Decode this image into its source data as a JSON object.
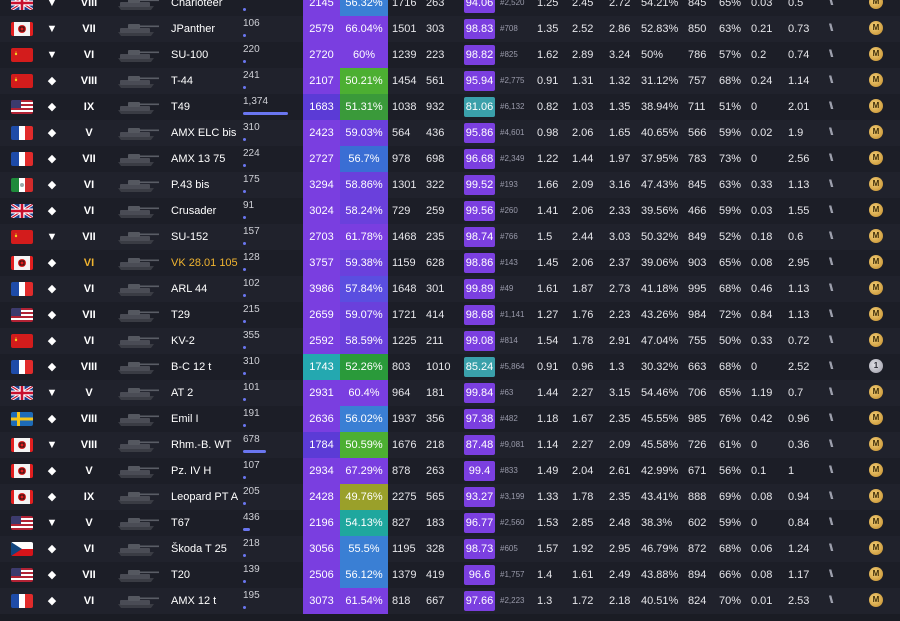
{
  "colors": {
    "tier_default": "#ffffff",
    "tier_premium": "#f0b430",
    "battles_bar": "#6a76f0",
    "wn8_purple": "#7a3ee0",
    "wn8_violet": "#5b3bd6",
    "wn8_teal": "#24a8b0",
    "wr_green": "#4caf32",
    "wr_teal": "#1fa79e",
    "pb_purple": "#7b3fe0",
    "pb_teal": "#3aa0aa"
  },
  "columns": [
    "nation",
    "type",
    "tier",
    "tank",
    "name",
    "battles",
    "wn8",
    "winrate",
    "damage",
    "frags",
    "percentile",
    "rank",
    "k1",
    "k2",
    "k3",
    "survived",
    "xp",
    "hit",
    "k4",
    "k5",
    "marks",
    "mastery"
  ],
  "rows": [
    {
      "nation": "uk",
      "type": "td",
      "tier": "VIII",
      "name": "Charioteer",
      "battles": "190",
      "bbar": 0.03,
      "wn8": "2145",
      "wn8c": "#7a3ee0",
      "wr": "56.32%",
      "wrc": "#3a7fd4",
      "dmg": "1716",
      "frags": "263",
      "pb": "94.06",
      "pbc": "#7b3fe0",
      "rank": "#2,520",
      "k1": "1.25",
      "k2": "2.45",
      "k3": "2.72",
      "surv": "54.21%",
      "xp": "845",
      "hit": "65%",
      "k4": "0.03",
      "k5": "0.5",
      "mast": "M",
      "mastc": "gold"
    },
    {
      "nation": "ger",
      "type": "td",
      "tier": "VII",
      "name": "JPanther",
      "battles": "106",
      "bbar": 0.02,
      "wn8": "2579",
      "wn8c": "#7a3ee0",
      "wr": "66.04%",
      "wrc": "#7a3ee0",
      "dmg": "1501",
      "frags": "303",
      "pb": "98.83",
      "pbc": "#7b3fe0",
      "rank": "#708",
      "k1": "1.35",
      "k2": "2.52",
      "k3": "2.86",
      "surv": "52.83%",
      "xp": "850",
      "hit": "63%",
      "k4": "0.21",
      "k5": "0.73",
      "mast": "M",
      "mastc": "gold"
    },
    {
      "nation": "ussr",
      "type": "td",
      "tier": "VI",
      "name": "SU-100",
      "battles": "220",
      "bbar": 0.03,
      "wn8": "2720",
      "wn8c": "#7a3ee0",
      "wr": "60%",
      "wrc": "#7a3ee0",
      "dmg": "1239",
      "frags": "223",
      "pb": "98.82",
      "pbc": "#7b3fe0",
      "rank": "#825",
      "k1": "1.62",
      "k2": "2.89",
      "k3": "3.24",
      "surv": "50%",
      "xp": "786",
      "hit": "57%",
      "k4": "0.2",
      "k5": "0.74",
      "mast": "M",
      "mastc": "gold"
    },
    {
      "nation": "ussr",
      "type": "mt",
      "tier": "VIII",
      "name": "T-44",
      "battles": "241",
      "bbar": 0.04,
      "wn8": "2107",
      "wn8c": "#7a3ee0",
      "wr": "50.21%",
      "wrc": "#4caf32",
      "dmg": "1454",
      "frags": "561",
      "pb": "95.94",
      "pbc": "#7b3fe0",
      "rank": "#2,775",
      "k1": "0.91",
      "k2": "1.31",
      "k3": "1.32",
      "surv": "31.12%",
      "xp": "757",
      "hit": "68%",
      "k4": "0.24",
      "k5": "1.14",
      "mast": "M",
      "mastc": "gold"
    },
    {
      "nation": "usa",
      "type": "lt",
      "tier": "IX",
      "name": "T49",
      "battles": "1,374",
      "bbar": 0.9,
      "wn8": "1683",
      "wn8c": "#5b3bd6",
      "wr": "51.31%",
      "wrc": "#3a9a3a",
      "dmg": "1038",
      "frags": "932",
      "pb": "81.06",
      "pbc": "#3aa0aa",
      "rank": "#6,132",
      "k1": "0.82",
      "k2": "1.03",
      "k3": "1.35",
      "surv": "38.94%",
      "xp": "711",
      "hit": "51%",
      "k4": "0",
      "k5": "2.01",
      "mast": "M",
      "mastc": "gold"
    },
    {
      "nation": "fr",
      "type": "lt",
      "tier": "V",
      "name": "AMX ELC bis",
      "battles": "310",
      "bbar": 0.04,
      "wn8": "2423",
      "wn8c": "#7a3ee0",
      "wr": "59.03%",
      "wrc": "#6a40dc",
      "dmg": "564",
      "frags": "436",
      "pb": "95.86",
      "pbc": "#7b3fe0",
      "rank": "#4,601",
      "k1": "0.98",
      "k2": "2.06",
      "k3": "1.65",
      "surv": "40.65%",
      "xp": "566",
      "hit": "59%",
      "k4": "0.02",
      "k5": "1.9",
      "mast": "M",
      "mastc": "gold"
    },
    {
      "nation": "fr",
      "type": "lt",
      "tier": "VII",
      "name": "AMX 13 75",
      "battles": "224",
      "bbar": 0.03,
      "wn8": "2727",
      "wn8c": "#7a3ee0",
      "wr": "56.7%",
      "wrc": "#3a6ed4",
      "dmg": "978",
      "frags": "698",
      "pb": "96.68",
      "pbc": "#7b3fe0",
      "rank": "#2,349",
      "k1": "1.22",
      "k2": "1.44",
      "k3": "1.97",
      "surv": "37.95%",
      "xp": "783",
      "hit": "73%",
      "k4": "0",
      "k5": "2.56",
      "mast": "M",
      "mastc": "gold"
    },
    {
      "nation": "it",
      "type": "mt",
      "tier": "VI",
      "name": "P.43 bis",
      "battles": "175",
      "bbar": 0.03,
      "wn8": "3294",
      "wn8c": "#7a3ee0",
      "wr": "58.86%",
      "wrc": "#6a40dc",
      "dmg": "1301",
      "frags": "322",
      "pb": "99.52",
      "pbc": "#7b3fe0",
      "rank": "#193",
      "k1": "1.66",
      "k2": "2.09",
      "k3": "3.16",
      "surv": "47.43%",
      "xp": "845",
      "hit": "63%",
      "k4": "0.33",
      "k5": "1.13",
      "mast": "M",
      "mastc": "gold"
    },
    {
      "nation": "uk",
      "type": "lt",
      "tier": "VI",
      "name": "Crusader",
      "battles": "91",
      "bbar": 0.02,
      "wn8": "3024",
      "wn8c": "#7a3ee0",
      "wr": "58.24%",
      "wrc": "#6a40dc",
      "dmg": "729",
      "frags": "259",
      "pb": "99.56",
      "pbc": "#7b3fe0",
      "rank": "#260",
      "k1": "1.41",
      "k2": "2.06",
      "k3": "2.33",
      "surv": "39.56%",
      "xp": "466",
      "hit": "59%",
      "k4": "0.03",
      "k5": "1.55",
      "mast": "M",
      "mastc": "gold"
    },
    {
      "nation": "ussr",
      "type": "td",
      "tier": "VII",
      "name": "SU-152",
      "battles": "157",
      "bbar": 0.03,
      "wn8": "2703",
      "wn8c": "#7a3ee0",
      "wr": "61.78%",
      "wrc": "#7a3ee0",
      "dmg": "1468",
      "frags": "235",
      "pb": "98.74",
      "pbc": "#7b3fe0",
      "rank": "#766",
      "k1": "1.5",
      "k2": "2.44",
      "k3": "3.03",
      "surv": "50.32%",
      "xp": "849",
      "hit": "52%",
      "k4": "0.18",
      "k5": "0.6",
      "mast": "M",
      "mastc": "gold"
    },
    {
      "nation": "ger",
      "type": "ht",
      "tier": "VI",
      "prem": true,
      "name": "VK 28.01 105",
      "battles": "128",
      "bbar": 0.02,
      "wn8": "3757",
      "wn8c": "#7a3ee0",
      "wr": "59.38%",
      "wrc": "#6a40dc",
      "dmg": "1159",
      "frags": "628",
      "pb": "98.86",
      "pbc": "#7b3fe0",
      "rank": "#143",
      "k1": "1.45",
      "k2": "2.06",
      "k3": "2.37",
      "surv": "39.06%",
      "xp": "903",
      "hit": "65%",
      "k4": "0.08",
      "k5": "2.95",
      "mast": "M",
      "mastc": "gold"
    },
    {
      "nation": "fr",
      "type": "lt",
      "tier": "VI",
      "name": "ARL 44",
      "battles": "102",
      "bbar": 0.02,
      "wn8": "3986",
      "wn8c": "#7a3ee0",
      "wr": "57.84%",
      "wrc": "#5a4ee0",
      "dmg": "1648",
      "frags": "301",
      "pb": "99.89",
      "pbc": "#7b3fe0",
      "rank": "#49",
      "k1": "1.61",
      "k2": "1.87",
      "k3": "2.73",
      "surv": "41.18%",
      "xp": "995",
      "hit": "68%",
      "k4": "0.46",
      "k5": "1.13",
      "mast": "M",
      "mastc": "gold"
    },
    {
      "nation": "usa",
      "type": "ht",
      "tier": "VII",
      "name": "T29",
      "battles": "215",
      "bbar": 0.03,
      "wn8": "2659",
      "wn8c": "#7a3ee0",
      "wr": "59.07%",
      "wrc": "#6a40dc",
      "dmg": "1721",
      "frags": "414",
      "pb": "98.68",
      "pbc": "#7b3fe0",
      "rank": "#1,141",
      "k1": "1.27",
      "k2": "1.76",
      "k3": "2.23",
      "surv": "43.26%",
      "xp": "984",
      "hit": "72%",
      "k4": "0.84",
      "k5": "1.13",
      "mast": "M",
      "mastc": "gold"
    },
    {
      "nation": "ussr",
      "type": "ht",
      "tier": "VI",
      "name": "KV-2",
      "battles": "355",
      "bbar": 0.05,
      "wn8": "2592",
      "wn8c": "#7a3ee0",
      "wr": "58.59%",
      "wrc": "#6a40dc",
      "dmg": "1225",
      "frags": "211",
      "pb": "99.08",
      "pbc": "#7b3fe0",
      "rank": "#814",
      "k1": "1.54",
      "k2": "1.78",
      "k3": "2.91",
      "surv": "47.04%",
      "xp": "755",
      "hit": "50%",
      "k4": "0.33",
      "k5": "0.72",
      "mast": "M",
      "mastc": "gold"
    },
    {
      "nation": "fr",
      "type": "ht",
      "tier": "VIII",
      "name": "B-C 12 t",
      "battles": "310",
      "bbar": 0.04,
      "wn8": "1743",
      "wn8c": "#24a8b0",
      "wr": "52.26%",
      "wrc": "#2a9a3a",
      "dmg": "803",
      "frags": "1010",
      "pb": "85.24",
      "pbc": "#3aa0aa",
      "rank": "#5,864",
      "k1": "0.91",
      "k2": "0.96",
      "k3": "1.3",
      "surv": "30.32%",
      "xp": "663",
      "hit": "68%",
      "k4": "0",
      "k5": "2.52",
      "mast": "1",
      "mastc": "silver"
    },
    {
      "nation": "uk",
      "type": "td",
      "tier": "V",
      "name": "AT 2",
      "battles": "101",
      "bbar": 0.02,
      "wn8": "2931",
      "wn8c": "#7a3ee0",
      "wr": "60.4%",
      "wrc": "#7a3ee0",
      "dmg": "964",
      "frags": "181",
      "pb": "99.84",
      "pbc": "#7b3fe0",
      "rank": "#63",
      "k1": "1.44",
      "k2": "2.27",
      "k3": "3.15",
      "surv": "54.46%",
      "xp": "706",
      "hit": "65%",
      "k4": "1.19",
      "k5": "0.7",
      "mast": "M",
      "mastc": "gold"
    },
    {
      "nation": "swe",
      "type": "mt",
      "tier": "VIII",
      "name": "Emil I",
      "battles": "191",
      "bbar": 0.03,
      "wn8": "2636",
      "wn8c": "#7a3ee0",
      "wr": "56.02%",
      "wrc": "#3a7fd4",
      "dmg": "1937",
      "frags": "356",
      "pb": "97.38",
      "pbc": "#7b3fe0",
      "rank": "#482",
      "k1": "1.18",
      "k2": "1.67",
      "k3": "2.35",
      "surv": "45.55%",
      "xp": "985",
      "hit": "76%",
      "k4": "0.42",
      "k5": "0.96",
      "mast": "M",
      "mastc": "gold"
    },
    {
      "nation": "ger",
      "type": "td",
      "tier": "VIII",
      "name": "Rhm.-B. WT",
      "battles": "678",
      "bbar": 0.45,
      "wn8": "1784",
      "wn8c": "#5b3bd6",
      "wr": "50.59%",
      "wrc": "#4caf32",
      "dmg": "1676",
      "frags": "218",
      "pb": "87.48",
      "pbc": "#7b3fe0",
      "rank": "#9,081",
      "k1": "1.14",
      "k2": "2.27",
      "k3": "2.09",
      "surv": "45.58%",
      "xp": "726",
      "hit": "61%",
      "k4": "0",
      "k5": "0.36",
      "mast": "M",
      "mastc": "gold"
    },
    {
      "nation": "ger",
      "type": "mt",
      "tier": "V",
      "name": "Pz. IV H",
      "battles": "107",
      "bbar": 0.02,
      "wn8": "2934",
      "wn8c": "#7a3ee0",
      "wr": "67.29%",
      "wrc": "#7a3ee0",
      "dmg": "878",
      "frags": "263",
      "pb": "99.4",
      "pbc": "#7b3fe0",
      "rank": "#833",
      "k1": "1.49",
      "k2": "2.04",
      "k3": "2.61",
      "surv": "42.99%",
      "xp": "671",
      "hit": "56%",
      "k4": "0.1",
      "k5": "1",
      "mast": "M",
      "mastc": "gold"
    },
    {
      "nation": "ger",
      "type": "lt",
      "tier": "IX",
      "name": "Leopard PT A",
      "battles": "205",
      "bbar": 0.03,
      "wn8": "2428",
      "wn8c": "#7a3ee0",
      "wr": "49.76%",
      "wrc": "#9aa02a",
      "dmg": "2275",
      "frags": "565",
      "pb": "93.27",
      "pbc": "#7b3fe0",
      "rank": "#3,199",
      "k1": "1.33",
      "k2": "1.78",
      "k3": "2.35",
      "surv": "43.41%",
      "xp": "888",
      "hit": "69%",
      "k4": "0.08",
      "k5": "0.94",
      "mast": "M",
      "mastc": "gold"
    },
    {
      "nation": "usa",
      "type": "td",
      "tier": "V",
      "name": "T67",
      "battles": "436",
      "bbar": 0.14,
      "wn8": "2196",
      "wn8c": "#7a3ee0",
      "wr": "54.13%",
      "wrc": "#1fa79e",
      "dmg": "827",
      "frags": "183",
      "pb": "96.77",
      "pbc": "#7b3fe0",
      "rank": "#2,560",
      "k1": "1.53",
      "k2": "2.85",
      "k3": "2.48",
      "surv": "38.3%",
      "xp": "602",
      "hit": "59%",
      "k4": "0",
      "k5": "0.84",
      "mast": "M",
      "mastc": "gold"
    },
    {
      "nation": "cz",
      "type": "mt",
      "tier": "VI",
      "name": "Škoda T 25",
      "battles": "218",
      "bbar": 0.03,
      "wn8": "3056",
      "wn8c": "#7a3ee0",
      "wr": "55.5%",
      "wrc": "#3a7fd4",
      "dmg": "1195",
      "frags": "328",
      "pb": "98.73",
      "pbc": "#7b3fe0",
      "rank": "#605",
      "k1": "1.57",
      "k2": "1.92",
      "k3": "2.95",
      "surv": "46.79%",
      "xp": "872",
      "hit": "68%",
      "k4": "0.06",
      "k5": "1.24",
      "mast": "M",
      "mastc": "gold"
    },
    {
      "nation": "usa",
      "type": "mt",
      "tier": "VII",
      "name": "T20",
      "battles": "139",
      "bbar": 0.02,
      "wn8": "2506",
      "wn8c": "#7a3ee0",
      "wr": "56.12%",
      "wrc": "#3a7fd4",
      "dmg": "1379",
      "frags": "419",
      "pb": "96.6",
      "pbc": "#7b3fe0",
      "rank": "#1,757",
      "k1": "1.4",
      "k2": "1.61",
      "k3": "2.49",
      "surv": "43.88%",
      "xp": "894",
      "hit": "66%",
      "k4": "0.08",
      "k5": "1.17",
      "mast": "M",
      "mastc": "gold"
    },
    {
      "nation": "fr",
      "type": "lt",
      "tier": "VI",
      "name": "AMX 12 t",
      "battles": "195",
      "bbar": 0.03,
      "wn8": "3073",
      "wn8c": "#7a3ee0",
      "wr": "61.54%",
      "wrc": "#7a3ee0",
      "dmg": "818",
      "frags": "667",
      "pb": "97.66",
      "pbc": "#7b3fe0",
      "rank": "#2,223",
      "k1": "1.3",
      "k2": "1.72",
      "k3": "2.18",
      "surv": "40.51%",
      "xp": "824",
      "hit": "70%",
      "k4": "0.01",
      "k5": "2.53",
      "mast": "M",
      "mastc": "gold"
    }
  ]
}
